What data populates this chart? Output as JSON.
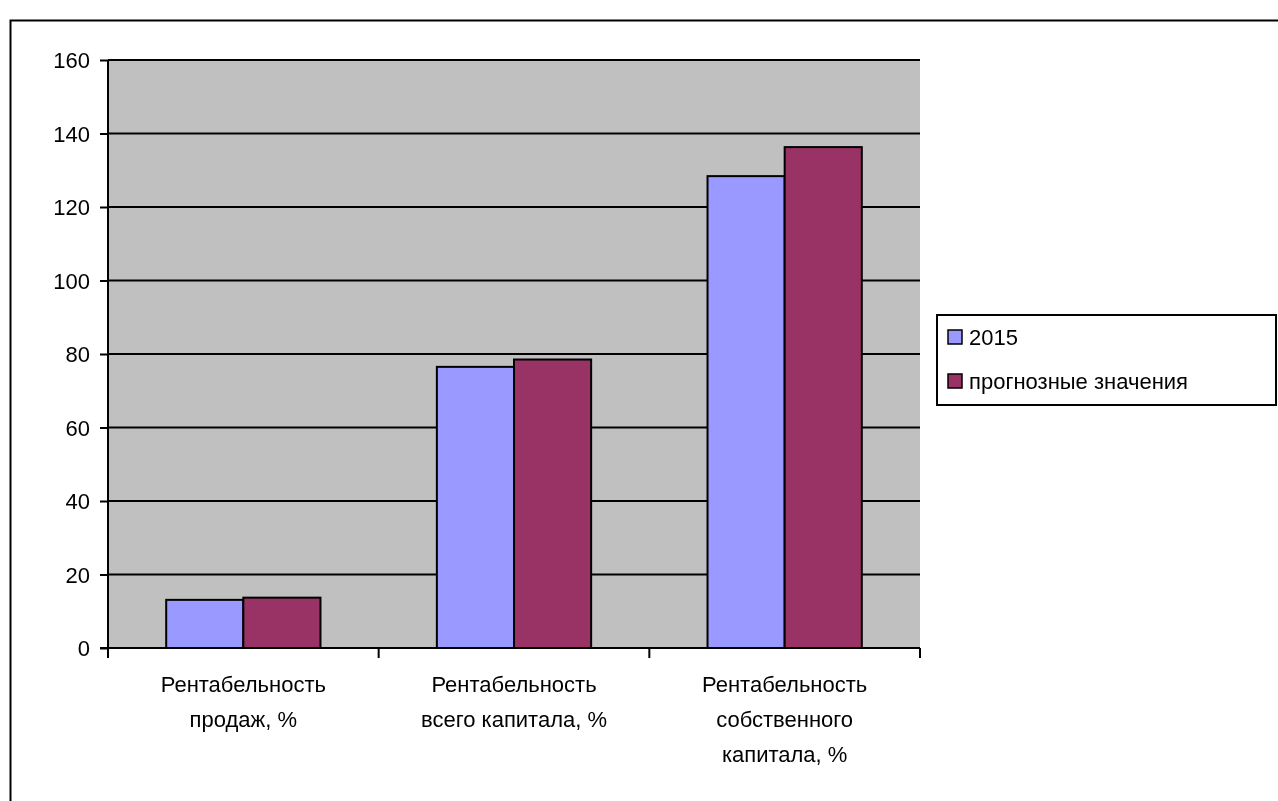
{
  "chart_data": {
    "type": "bar",
    "categories": [
      "Рентабельность продаж, %",
      "Рентабельность всего капитала, %",
      "Рентабельность собственного капитала, %"
    ],
    "series": [
      {
        "name": "2015",
        "color": "#9999ff",
        "values": [
          13.1,
          76.5,
          128.4
        ]
      },
      {
        "name": "прогнозные значения",
        "color": "#993366",
        "values": [
          13.7,
          78.5,
          136.3
        ]
      }
    ],
    "ylim": [
      0,
      160
    ],
    "yticks": [
      0,
      20,
      40,
      60,
      80,
      100,
      120,
      140,
      160
    ],
    "grid": "y",
    "legend": "right"
  }
}
